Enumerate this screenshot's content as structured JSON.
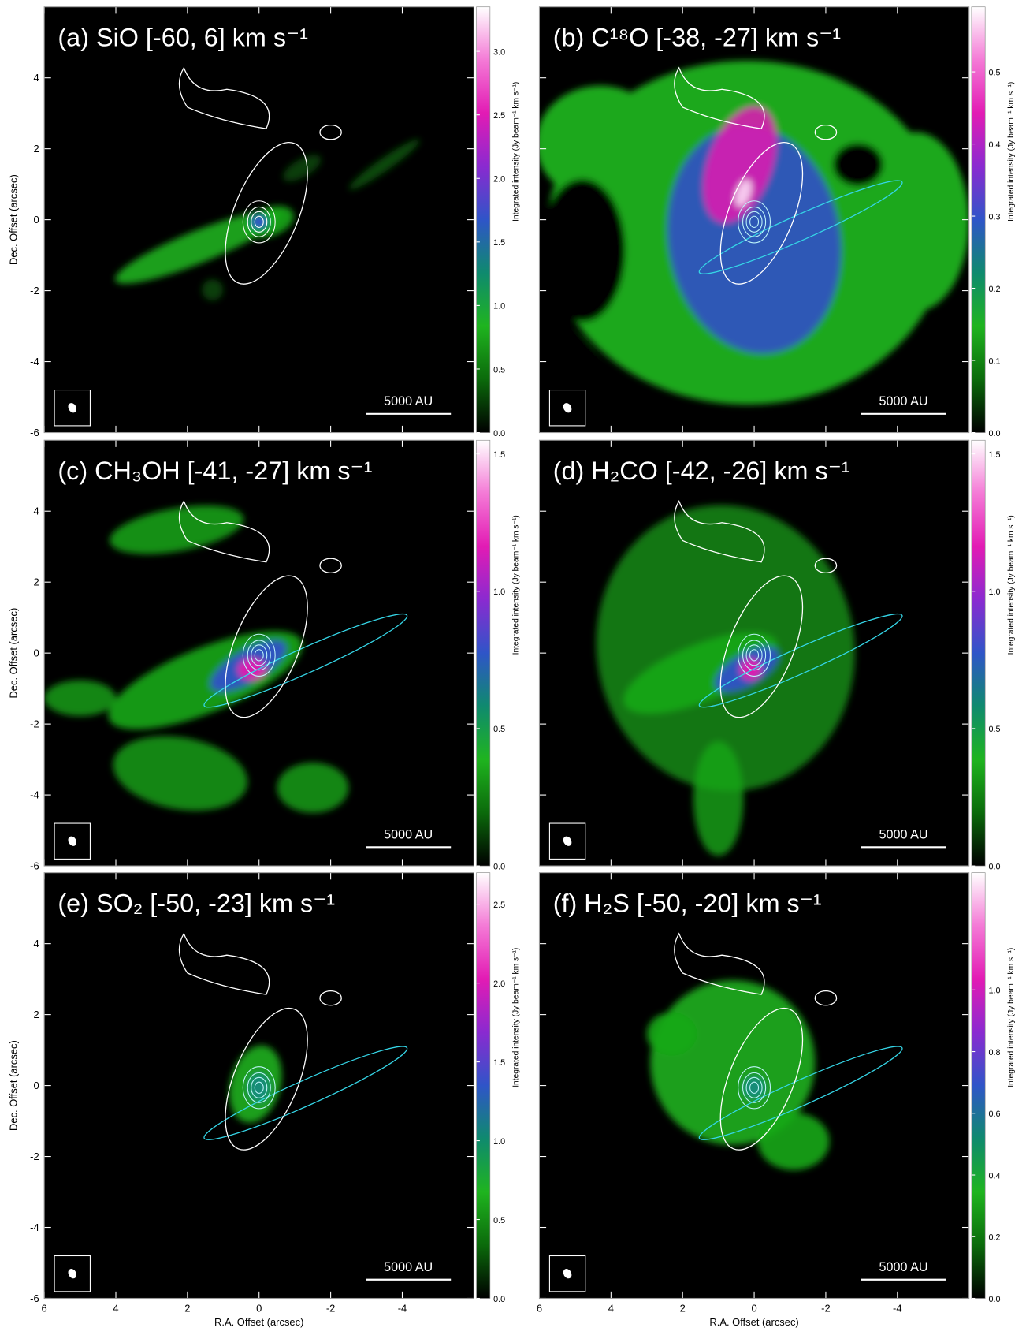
{
  "colormap": [
    "#000000",
    "#0b6a0b",
    "#1fb41f",
    "#0f8a6e",
    "#2f55c8",
    "#8a2ad0",
    "#e21bb4",
    "#f47ad6",
    "#ffffff"
  ],
  "chart_data": [
    {
      "type": "image",
      "title": "(a) SiO [-60, 6] km s⁻¹",
      "ylabel": "Dec. Offset (arcsec)",
      "xlim": [
        6,
        -6
      ],
      "ylim": [
        -6,
        6
      ],
      "xticks": [
        6,
        4,
        2,
        0,
        -2,
        -4
      ],
      "yticks": [
        -6,
        -4,
        -2,
        0,
        2,
        4
      ],
      "clim": [
        0,
        3.35
      ],
      "cticks": [
        {
          "value": 0,
          "label": "0.0"
        },
        {
          "value": 0.5,
          "label": "0.5"
        },
        {
          "value": 1,
          "label": "1.0"
        },
        {
          "value": 1.5,
          "label": "1.5"
        },
        {
          "value": 2,
          "label": "2.0"
        },
        {
          "value": 2.5,
          "label": "2.5"
        },
        {
          "value": 3,
          "label": "3.0"
        }
      ],
      "colorbar_label": "Integrated intensity (Jy beam⁻¹ km s⁻¹)",
      "scalebar_label": "5000 AU"
    },
    {
      "type": "image",
      "title": "(b) C¹⁸O [-38, -27] km s⁻¹",
      "xlim": [
        6,
        -6
      ],
      "ylim": [
        -6,
        6
      ],
      "xticks": [
        6,
        4,
        2,
        0,
        -2,
        -4
      ],
      "yticks": [
        -6,
        -4,
        -2,
        0,
        2,
        4
      ],
      "clim": [
        0,
        0.59
      ],
      "cticks": [
        {
          "value": 0,
          "label": "0.0"
        },
        {
          "value": 0.1,
          "label": "0.1"
        },
        {
          "value": 0.2,
          "label": "0.2"
        },
        {
          "value": 0.3,
          "label": "0.3"
        },
        {
          "value": 0.4,
          "label": "0.4"
        },
        {
          "value": 0.5,
          "label": "0.5"
        }
      ],
      "colorbar_label": "Integrated intensity (Jy beam⁻¹ km s⁻¹)",
      "scalebar_label": "5000 AU"
    },
    {
      "type": "image",
      "title": "(c) CH₃OH [-41, -27] km s⁻¹",
      "ylabel": "Dec. Offset (arcsec)",
      "xlim": [
        6,
        -6
      ],
      "ylim": [
        -6,
        6
      ],
      "xticks": [
        6,
        4,
        2,
        0,
        -2,
        -4
      ],
      "yticks": [
        -6,
        -4,
        -2,
        0,
        2,
        4
      ],
      "clim": [
        0,
        1.55
      ],
      "cticks": [
        {
          "value": 0,
          "label": "0.0"
        },
        {
          "value": 0.5,
          "label": "0.5"
        },
        {
          "value": 1,
          "label": "1.0"
        },
        {
          "value": 1.5,
          "label": "1.5"
        }
      ],
      "colorbar_label": "Integrated intensity (Jy beam⁻¹ km s⁻¹)",
      "scalebar_label": "5000 AU"
    },
    {
      "type": "image",
      "title": "(d) H₂CO [-42, -26] km s⁻¹",
      "xlim": [
        6,
        -6
      ],
      "ylim": [
        -6,
        6
      ],
      "xticks": [
        6,
        4,
        2,
        0,
        -2,
        -4
      ],
      "yticks": [
        -6,
        -4,
        -2,
        0,
        2,
        4
      ],
      "clim": [
        0,
        1.55
      ],
      "cticks": [
        {
          "value": 0,
          "label": "0.0"
        },
        {
          "value": 0.5,
          "label": "0.5"
        },
        {
          "value": 1,
          "label": "1.0"
        },
        {
          "value": 1.5,
          "label": "1.5"
        }
      ],
      "colorbar_label": "Integrated intensity (Jy beam⁻¹ km s⁻¹)",
      "scalebar_label": "5000 AU"
    },
    {
      "type": "image",
      "title": "(e) SO₂ [-50, -23] km s⁻¹",
      "ylabel": "Dec. Offset (arcsec)",
      "xlabel": "R.A. Offset (arcsec)",
      "xlim": [
        6,
        -6
      ],
      "ylim": [
        -6,
        6
      ],
      "xticks": [
        6,
        4,
        2,
        0,
        -2,
        -4
      ],
      "yticks": [
        -6,
        -4,
        -2,
        0,
        2,
        4
      ],
      "clim": [
        0,
        2.7
      ],
      "cticks": [
        {
          "value": 0,
          "label": "0.0"
        },
        {
          "value": 0.5,
          "label": "0.5"
        },
        {
          "value": 1,
          "label": "1.0"
        },
        {
          "value": 1.5,
          "label": "1.5"
        },
        {
          "value": 2,
          "label": "2.0"
        },
        {
          "value": 2.5,
          "label": "2.5"
        }
      ],
      "colorbar_label": "Integrated intensity (Jy beam⁻¹ km s⁻¹)",
      "scalebar_label": "5000 AU"
    },
    {
      "type": "image",
      "title": "(f) H₂S [-50, -20] km s⁻¹",
      "xlabel": "R.A. Offset (arcsec)",
      "xlim": [
        6,
        -6
      ],
      "ylim": [
        -6,
        6
      ],
      "xticks": [
        6,
        4,
        2,
        0,
        -2,
        -4
      ],
      "yticks": [
        -6,
        -4,
        -2,
        0,
        2,
        4
      ],
      "clim": [
        0,
        1.38
      ],
      "cticks": [
        {
          "value": 0,
          "label": "0.0"
        },
        {
          "value": 0.2,
          "label": "0.2"
        },
        {
          "value": 0.4,
          "label": "0.4"
        },
        {
          "value": 0.6,
          "label": "0.6"
        },
        {
          "value": 0.8,
          "label": "0.8"
        },
        {
          "value": 1,
          "label": "1.0"
        }
      ],
      "colorbar_label": "Integrated intensity (Jy beam⁻¹ km s⁻¹)",
      "scalebar_label": "5000 AU"
    }
  ]
}
